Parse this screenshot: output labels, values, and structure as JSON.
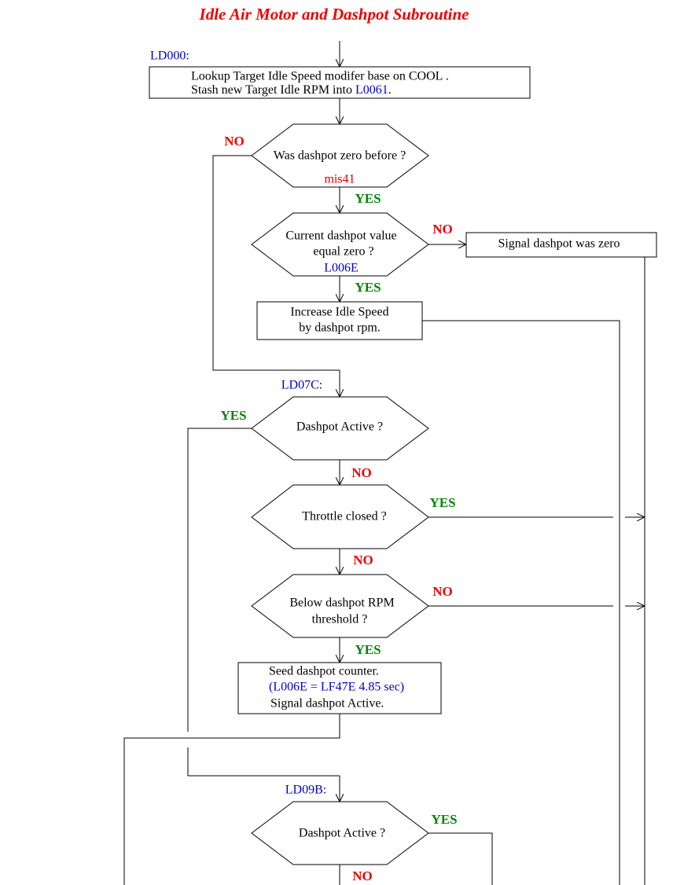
{
  "title": "Idle Air Motor and Dashpot Subroutine",
  "entry_labels": [
    "LD000:",
    "LD07C:",
    "LD09B:"
  ],
  "box_lookup": {
    "line1": "Lookup Target Idle Speed modifer base on COOL .",
    "line2": "Stash new Target Idle RPM into",
    "line2_ref": "L0061",
    "line2_end": "."
  },
  "dec_dashpot_zero": {
    "text": "Was dashpot zero before ?",
    "ref": "mis41",
    "no": "NO",
    "yes": "YES"
  },
  "dec_current_zero": {
    "lines": [
      "Current dashpot value",
      "equal zero ?"
    ],
    "ref": "L006E",
    "no": "NO",
    "yes": "YES"
  },
  "box_signal_zero": {
    "text": "Signal dashpot was zero"
  },
  "box_increase": {
    "lines": [
      "Increase Idle Speed",
      "by dashpot rpm."
    ]
  },
  "dec_active_1": {
    "text": "Dashpot Active ?",
    "yes": "YES",
    "no": "NO"
  },
  "dec_throttle": {
    "text": "Throttle closed ?",
    "yes": "YES",
    "no": "NO"
  },
  "dec_below": {
    "lines": [
      "Below dashpot RPM",
      "threshold ?"
    ],
    "no": "NO",
    "yes": "YES"
  },
  "box_seed": {
    "lines": [
      "Seed dashpot counter.",
      "(L006E = LF47E  4.85 sec)",
      "Signal dashpot Active."
    ]
  },
  "dec_active_2": {
    "text": "Dashpot Active ?",
    "yes": "YES",
    "no": "NO"
  }
}
